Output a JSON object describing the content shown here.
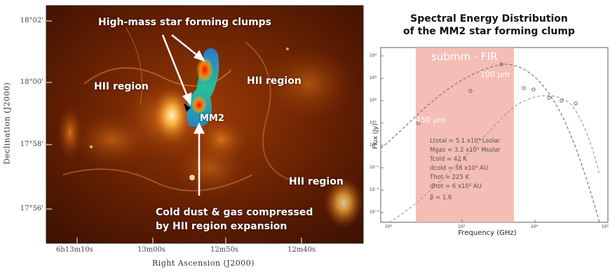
{
  "left_panel": {
    "y_axis_label": "Declination (J2000)",
    "x_axis_label": "Right Ascension (J2000)",
    "y_ticks": [
      "18°02'",
      "18°00'",
      "17°58'",
      "17°56'"
    ],
    "x_ticks": [
      "6h13m10s",
      "13m00s",
      "12m50s",
      "12m40s"
    ],
    "labels": {
      "clumps": "High-mass star forming clumps",
      "hii_left": "HII region",
      "hii_right": "HII region",
      "hii_lower_right": "HII region",
      "mm2": "MM2",
      "cold_dust_line1": "Cold dust & gas compressed",
      "cold_dust_line2": "by HII region expansion"
    }
  },
  "right_panel": {
    "title_line1": "Spectral Energy Distribution",
    "title_line2": "of the MM2 star forming clump",
    "band_label": "submm - FIR",
    "marker_100": "100 μm",
    "marker_450": "450 μm",
    "x_axis_label": "Frequency (GHz)",
    "y_axis_label": "Flux (Jy)",
    "y_ticks": [
      "10⁴",
      "10³",
      "10²",
      "10¹",
      "10⁰",
      "10⁻¹",
      "10⁻²",
      "10⁻³"
    ],
    "x_ticks": [
      "10²",
      "10³",
      "10⁴",
      "10⁵"
    ],
    "params": [
      "Ltotal = 5.1 x10⁴ Lsolar",
      "Mgas = 3.2 x10² Msolar",
      "Tcold = 42 K",
      "dcold = 38 x10³ AU",
      "Thot = 225 K",
      "dhot = 6 x10² AU",
      "β = 1.6"
    ]
  }
}
